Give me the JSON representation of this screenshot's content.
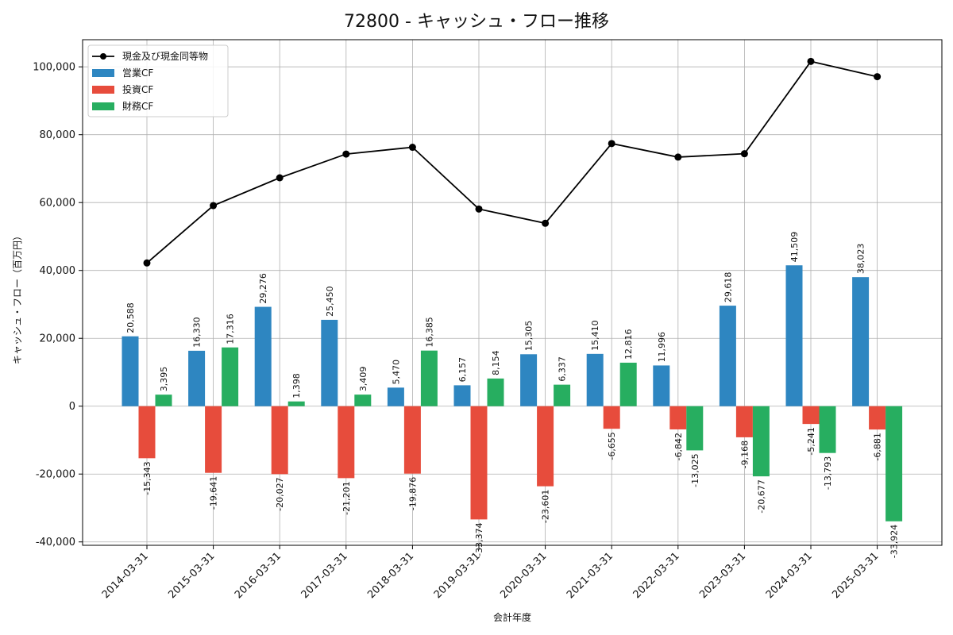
{
  "chart_data": {
    "type": "bar",
    "title": "72800 - キャッシュ・フロー推移",
    "xlabel": "会計年度",
    "ylabel": "キャッシュ・フロー（百万円）",
    "ylim": [
      -41000,
      108000
    ],
    "yticks": [
      -40000,
      -20000,
      0,
      20000,
      40000,
      60000,
      80000,
      100000
    ],
    "ytick_labels": [
      "-40,000",
      "-20,000",
      "0",
      "20,000",
      "40,000",
      "60,000",
      "80,000",
      "100,000"
    ],
    "grid": true,
    "legend_position": "top-left",
    "categories": [
      "2014-03-31",
      "2015-03-31",
      "2016-03-31",
      "2017-03-31",
      "2018-03-31",
      "2019-03-31",
      "2020-03-31",
      "2021-03-31",
      "2022-03-31",
      "2023-03-31",
      "2024-03-31",
      "2025-03-31"
    ],
    "series": [
      {
        "name": "営業CF",
        "kind": "bar",
        "color": "#2e86c1",
        "values": [
          20588,
          16330,
          29276,
          25450,
          5470,
          6157,
          15305,
          15410,
          11996,
          29618,
          41509,
          38023
        ],
        "labels": [
          "20,588",
          "16,330",
          "29,276",
          "25,450",
          "5,470",
          "6,157",
          "15,305",
          "15,410",
          "11,996",
          "29,618",
          "41,509",
          "38,023"
        ]
      },
      {
        "name": "投資CF",
        "kind": "bar",
        "color": "#e74c3c",
        "values": [
          -15343,
          -19641,
          -20027,
          -21201,
          -19876,
          -33374,
          -23601,
          -6655,
          -6842,
          -9168,
          -5241,
          -6881
        ],
        "labels": [
          "-15,343",
          "-19,641",
          "-20,027",
          "-21,201",
          "-19,876",
          "-33,374",
          "-23,601",
          "-6,655",
          "-6,842",
          "-9,168",
          "-5,241",
          "-6,881"
        ]
      },
      {
        "name": "財務CF",
        "kind": "bar",
        "color": "#27ae60",
        "values": [
          3395,
          17316,
          1398,
          3409,
          16385,
          8154,
          6337,
          12816,
          -13025,
          -20677,
          -13793,
          -33924
        ],
        "labels": [
          "3,395",
          "17,316",
          "1,398",
          "3,409",
          "16,385",
          "8,154",
          "6,337",
          "12,816",
          "-13,025",
          "-20,677",
          "-13,793",
          "-33,924"
        ]
      },
      {
        "name": "現金及び現金同等物",
        "kind": "line",
        "color": "#000000",
        "values": [
          42200,
          59100,
          67300,
          74300,
          76300,
          58100,
          53900,
          77400,
          73400,
          74400,
          101600,
          97100
        ]
      }
    ]
  }
}
